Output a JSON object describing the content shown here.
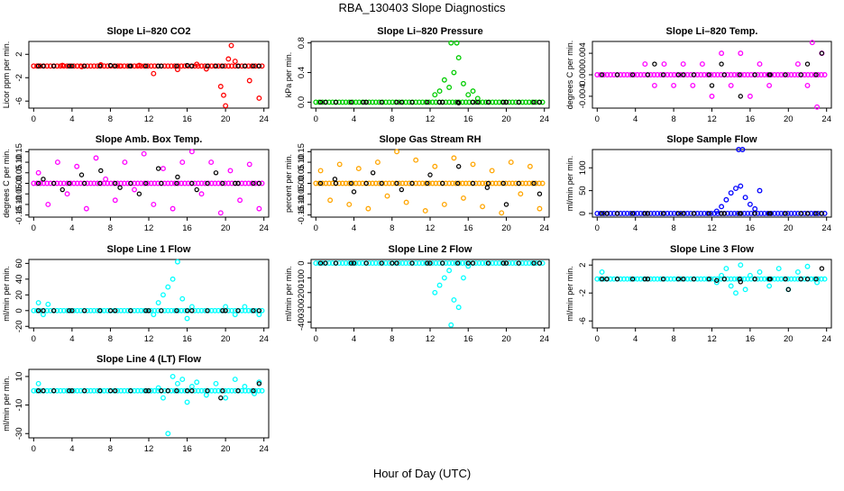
{
  "figure": {
    "title": "RBA_130403  Slope Diagnostics",
    "xlabel": "Hour of Day (UTC)"
  },
  "chart_data": [
    {
      "type": "scatter",
      "title": "Slope Li–820 CO2",
      "ylabel": "Licor ppm per min.",
      "color": "#ff0000",
      "xticks": [
        0,
        4,
        8,
        12,
        16,
        20,
        24
      ],
      "yticks": [
        2,
        -2,
        -6
      ],
      "xlim": [
        -0.5,
        24.5
      ],
      "ylim": [
        -7.2,
        4.2
      ],
      "series": [
        {
          "x": [
            0.5,
            3,
            5,
            7,
            9,
            11,
            12.5,
            15,
            17,
            18,
            19.5,
            19.8,
            20,
            20.3,
            20.6,
            21,
            22.5,
            23.5
          ],
          "y": [
            0,
            0.1,
            -0.1,
            0.2,
            0,
            0.1,
            -1.3,
            -0.6,
            0.3,
            -0.5,
            -3.5,
            -5,
            -6.8,
            1.2,
            3.5,
            0.8,
            -2.5,
            -5.5
          ]
        }
      ],
      "black": {
        "x": [
          1,
          4,
          8,
          10,
          13,
          16,
          19,
          22,
          23.5
        ],
        "y": [
          0,
          0,
          0.1,
          0,
          0,
          0.1,
          0,
          0,
          0
        ]
      }
    },
    {
      "type": "scatter",
      "title": "Slope Li–820 Pressure",
      "ylabel": "kPa per min.",
      "color": "#00cc00",
      "xticks": [
        0,
        4,
        8,
        12,
        16,
        20,
        24
      ],
      "yticks": [
        0.0,
        0.4,
        0.8
      ],
      "xlim": [
        -0.5,
        24.5
      ],
      "ylim": [
        -0.08,
        0.82
      ],
      "series": [
        {
          "x": [
            12.5,
            13,
            13.5,
            14,
            14.5,
            15,
            15.5,
            16,
            16.5,
            17,
            14.2,
            14.8
          ],
          "y": [
            0.1,
            0.15,
            0.3,
            0.2,
            0.4,
            0.6,
            0.25,
            0.1,
            0.15,
            0.05,
            0.8,
            0.8
          ]
        }
      ],
      "black": {
        "x": [
          1,
          5,
          9,
          13,
          15,
          17,
          20,
          23.5
        ],
        "y": [
          0,
          0,
          0,
          0,
          -0.01,
          0,
          0,
          0
        ]
      }
    },
    {
      "type": "scatter",
      "title": "Slope Li–820 Temp.",
      "ylabel": "degrees C per min.",
      "color": "#ff00ff",
      "xticks": [
        0,
        4,
        8,
        12,
        16,
        20,
        24
      ],
      "yticks": [
        0.004,
        0.0,
        -0.004
      ],
      "xlim": [
        -0.5,
        24.5
      ],
      "ylim": [
        -0.0062,
        0.0062
      ],
      "series": [
        {
          "x": [
            5,
            6,
            7,
            8,
            9,
            10,
            11,
            12,
            13,
            14,
            15,
            16,
            17,
            18,
            21,
            22,
            22.5,
            23,
            23.5
          ],
          "y": [
            0.002,
            -0.002,
            0.002,
            -0.002,
            0.002,
            -0.002,
            0.002,
            -0.004,
            0.004,
            -0.002,
            0.004,
            -0.004,
            0.002,
            -0.002,
            0.002,
            -0.002,
            0.006,
            -0.006,
            0.004
          ]
        }
      ],
      "black": {
        "x": [
          6,
          9,
          12,
          13,
          15,
          18,
          22,
          23.5
        ],
        "y": [
          0.002,
          0,
          -0.002,
          0.002,
          -0.004,
          0,
          0.002,
          0.004
        ]
      }
    },
    {
      "type": "scatter",
      "title": "Slope Amb. Box Temp.",
      "ylabel": "degrees C per min.",
      "color": "#ff00ff",
      "xticks": [
        0,
        4,
        8,
        12,
        16,
        20,
        24
      ],
      "yticks": [
        0.15,
        0.1,
        0.05,
        0.0,
        -0.05,
        -0.1,
        -0.15
      ],
      "xlim": [
        -0.5,
        24.5
      ],
      "ylim": [
        -0.16,
        0.16
      ],
      "series": [
        {
          "x": [
            0.5,
            1.5,
            2.5,
            3.5,
            4.5,
            5.5,
            6.5,
            7.5,
            8.5,
            9.5,
            10.5,
            11.5,
            12.5,
            13.5,
            14.5,
            15.5,
            16.5,
            17.5,
            18.5,
            19.5,
            20.5,
            21.5,
            22.5,
            23.5
          ],
          "y": [
            0.05,
            -0.1,
            0.1,
            -0.05,
            0.08,
            -0.12,
            0.12,
            0.02,
            -0.08,
            0.1,
            -0.03,
            0.14,
            -0.1,
            0.07,
            -0.12,
            0.1,
            0.15,
            -0.05,
            0.1,
            -0.14,
            0.06,
            -0.08,
            0.09,
            -0.12
          ]
        }
      ],
      "black": {
        "x": [
          1,
          3,
          5,
          7,
          9,
          11,
          13,
          15,
          17,
          19,
          21,
          23.5
        ],
        "y": [
          0.02,
          -0.03,
          0.04,
          0.06,
          -0.02,
          -0.05,
          0.07,
          0.03,
          -0.03,
          0.05,
          0.0,
          0.0
        ]
      }
    },
    {
      "type": "scatter",
      "title": "Slope Gas Stream RH",
      "ylabel": "percent per min.",
      "color": "#ffa500",
      "xticks": [
        0,
        4,
        8,
        12,
        16,
        20,
        24
      ],
      "yticks": [
        0.15,
        0.1,
        0.05,
        0.0,
        -0.05,
        -0.1,
        -0.15
      ],
      "xlim": [
        -0.5,
        24.5
      ],
      "ylim": [
        -0.16,
        0.16
      ],
      "series": [
        {
          "x": [
            0.5,
            1.5,
            2.5,
            3.5,
            4.5,
            5.5,
            6.5,
            7.5,
            8.5,
            9.5,
            10.5,
            11.5,
            12.5,
            13.5,
            14.5,
            15.5,
            16.5,
            17.5,
            18.5,
            19.5,
            20.5,
            21.5,
            22.5,
            23.5
          ],
          "y": [
            0.06,
            -0.08,
            0.09,
            -0.1,
            0.07,
            -0.12,
            0.1,
            -0.06,
            0.15,
            -0.09,
            0.11,
            -0.13,
            0.08,
            -0.1,
            0.12,
            -0.07,
            0.09,
            -0.11,
            0.06,
            -0.14,
            0.1,
            -0.05,
            0.08,
            -0.12
          ]
        }
      ],
      "black": {
        "x": [
          2,
          4,
          6,
          9,
          12,
          15,
          18,
          20,
          23.5
        ],
        "y": [
          0.02,
          -0.04,
          0.05,
          -0.03,
          0.04,
          0.08,
          -0.02,
          -0.1,
          -0.05
        ]
      }
    },
    {
      "type": "scatter",
      "title": "Slope Sample Flow",
      "ylabel": "ml/min per min.",
      "color": "#0000ff",
      "xticks": [
        0,
        4,
        8,
        12,
        16,
        20,
        24
      ],
      "yticks": [
        0,
        50,
        100
      ],
      "xlim": [
        -0.5,
        24.5
      ],
      "ylim": [
        -8,
        140
      ],
      "series": [
        {
          "x": [
            12.5,
            13,
            13.5,
            14,
            14.5,
            15,
            15.5,
            16,
            16.5,
            17,
            14.8,
            15.2
          ],
          "y": [
            5,
            15,
            30,
            45,
            55,
            60,
            35,
            20,
            10,
            50,
            140,
            140
          ]
        }
      ],
      "black": {
        "x": [
          1,
          5,
          9,
          13,
          15,
          18,
          22,
          23.5
        ],
        "y": [
          0,
          0,
          0,
          0,
          0,
          0,
          0,
          0
        ]
      }
    },
    {
      "type": "scatter",
      "title": "Slope Line 1 Flow",
      "ylabel": "ml/min per min.",
      "color": "#00ffff",
      "xticks": [
        0,
        4,
        8,
        12,
        16,
        20,
        24
      ],
      "yticks": [
        60,
        40,
        20,
        0,
        -20
      ],
      "xlim": [
        -0.5,
        24.5
      ],
      "ylim": [
        -22,
        65
      ],
      "series": [
        {
          "x": [
            0.5,
            1,
            1.5,
            12.5,
            13,
            13.5,
            14,
            14.5,
            15,
            15.5,
            16,
            16.5,
            20,
            21,
            22,
            23.5
          ],
          "y": [
            10,
            -5,
            8,
            -5,
            10,
            20,
            30,
            40,
            62,
            15,
            -10,
            5,
            5,
            -5,
            5,
            -5
          ]
        }
      ],
      "black": {
        "x": [
          1,
          4,
          8,
          12,
          16,
          20,
          23.5
        ],
        "y": [
          0,
          0,
          0,
          0,
          0,
          0,
          0
        ]
      }
    },
    {
      "type": "scatter",
      "title": "Slope Line 2 Flow",
      "ylabel": "ml/min per min.",
      "color": "#00ffff",
      "xticks": [
        0,
        4,
        8,
        12,
        16,
        20,
        24
      ],
      "yticks": [
        0,
        -100,
        -200,
        -300,
        -400
      ],
      "xlim": [
        -0.5,
        24.5
      ],
      "ylim": [
        -440,
        25
      ],
      "series": [
        {
          "x": [
            12.5,
            13,
            13.5,
            14,
            14.5,
            15,
            15.5,
            16,
            14.2
          ],
          "y": [
            -200,
            -150,
            -100,
            -50,
            -250,
            -300,
            -100,
            -20,
            -420
          ]
        }
      ],
      "black": {
        "x": [
          1,
          4,
          8,
          12,
          16,
          20,
          23.5
        ],
        "y": [
          0,
          0,
          0,
          0,
          0,
          0,
          0
        ]
      }
    },
    {
      "type": "scatter",
      "title": "Slope Line 3 Flow",
      "ylabel": "ml/min per min.",
      "color": "#00ffff",
      "xticks": [
        0,
        4,
        8,
        12,
        16,
        20,
        24
      ],
      "yticks": [
        2,
        -2,
        -6
      ],
      "xlim": [
        -0.5,
        24.5
      ],
      "ylim": [
        -7,
        2.8
      ],
      "series": [
        {
          "x": [
            0.5,
            12.5,
            13,
            13.5,
            14,
            14.5,
            15,
            15.5,
            16,
            17,
            18,
            19,
            20,
            21,
            22,
            23
          ],
          "y": [
            1,
            -0.5,
            0.5,
            1.5,
            -1,
            -2,
            2,
            -1.5,
            0.5,
            1,
            -1,
            1.5,
            -1.5,
            1,
            1.8,
            -0.5
          ]
        }
      ],
      "black": {
        "x": [
          1,
          5,
          9,
          12.5,
          15,
          18,
          20,
          22,
          23.5
        ],
        "y": [
          0,
          0,
          0,
          -0.2,
          -0.4,
          0,
          -1.5,
          0,
          1.5
        ]
      }
    },
    {
      "type": "scatter",
      "title": "Slope Line 4 (LT) Flow",
      "ylabel": "ml/min per min.",
      "color": "#00ffff",
      "xticks": [
        0,
        4,
        8,
        12,
        16,
        20,
        24
      ],
      "yticks": [
        10,
        -10,
        -30
      ],
      "xlim": [
        -0.5,
        24.5
      ],
      "ylim": [
        -33,
        15
      ],
      "series": [
        {
          "x": [
            0.5,
            13,
            13.5,
            14,
            14.5,
            15,
            15.5,
            16,
            16.5,
            17,
            18,
            19,
            20,
            21,
            22,
            23,
            23.5
          ],
          "y": [
            5,
            2,
            -5,
            -30,
            10,
            5,
            8,
            -8,
            3,
            6,
            -3,
            5,
            -5,
            8,
            3,
            -2,
            6
          ]
        }
      ],
      "black": {
        "x": [
          1,
          4,
          8,
          12,
          14,
          16,
          19.5,
          23.5
        ],
        "y": [
          0,
          0,
          0,
          0,
          0,
          0,
          -5,
          5
        ]
      }
    }
  ]
}
